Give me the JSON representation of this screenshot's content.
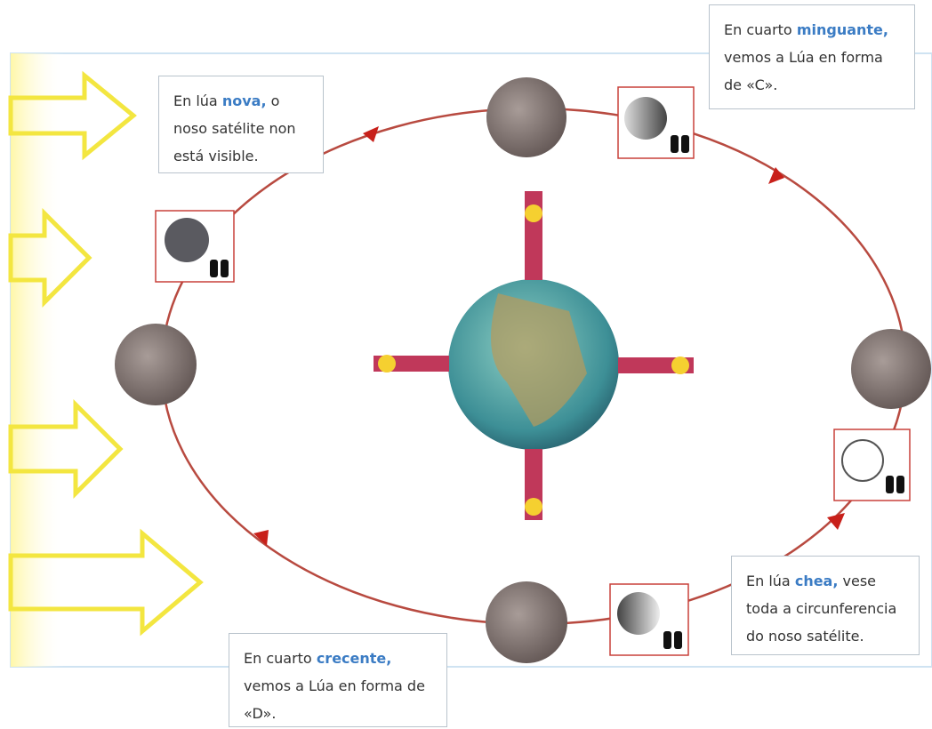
{
  "callouts": [
    {
      "before": "En lúa",
      "highlight": "nova,",
      "after": "o noso satélite non está visible."
    },
    {
      "before": "En cuarto",
      "highlight": "minguante,",
      "after": "vemos a Lúa en forma de «C»."
    },
    {
      "before": "En lúa",
      "highlight": "chea,",
      "after": "vese toda a circunferencia do noso satélite."
    },
    {
      "before": "En cuarto",
      "highlight": "crecente,",
      "after": "vemos a Lúa en forma de «D»."
    }
  ]
}
